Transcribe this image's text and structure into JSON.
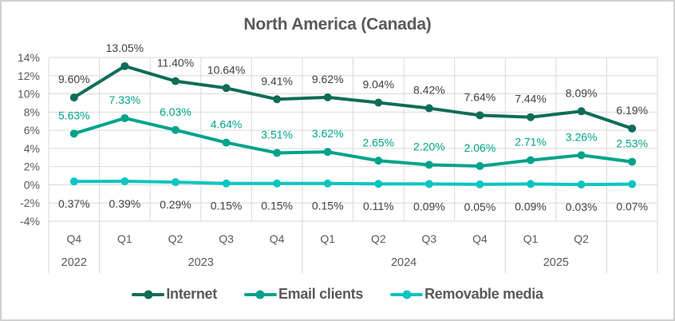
{
  "chart_data": {
    "type": "line",
    "title": "North America (Canada)",
    "grid": true,
    "legend_position": "bottom",
    "y_axis": {
      "min": -4,
      "max": 14,
      "step": 2,
      "ticks": [
        "14%",
        "12%",
        "10%",
        "8%",
        "6%",
        "4%",
        "2%",
        "0%",
        "-2%",
        "-4%"
      ],
      "tick_color": "#595959"
    },
    "quarters": [
      "Q4",
      "Q1",
      "Q2",
      "Q3",
      "Q4",
      "Q1",
      "Q2",
      "Q3",
      "Q4",
      "Q1",
      "Q2",
      ""
    ],
    "year_groups": [
      {
        "label": "2022",
        "span": 1
      },
      {
        "label": "2023",
        "span": 4
      },
      {
        "label": "2024",
        "span": 4
      },
      {
        "label": "2025",
        "span": 2
      },
      {
        "label": "",
        "span": 1
      }
    ],
    "series": [
      {
        "name": "Internet",
        "color": "#106c5a",
        "label_color": "#404040",
        "label_side": "above",
        "values": [
          9.6,
          13.05,
          11.4,
          10.64,
          9.41,
          9.62,
          9.04,
          8.42,
          7.64,
          7.44,
          8.09,
          6.19
        ],
        "labels": [
          "9.60%",
          "13.05%",
          "11.40%",
          "10.64%",
          "9.41%",
          "9.62%",
          "9.04%",
          "8.42%",
          "7.64%",
          "7.44%",
          "8.09%",
          "6.19%"
        ]
      },
      {
        "name": "Email clients",
        "color": "#00a38b",
        "label_color": "#00a38b",
        "label_side": "above",
        "values": [
          5.63,
          7.33,
          6.03,
          4.64,
          3.51,
          3.62,
          2.65,
          2.2,
          2.06,
          2.71,
          3.26,
          2.53
        ],
        "labels": [
          "5.63%",
          "7.33%",
          "6.03%",
          "4.64%",
          "3.51%",
          "3.62%",
          "2.65%",
          "2.20%",
          "2.06%",
          "2.71%",
          "3.26%",
          "2.53%"
        ]
      },
      {
        "name": "Removable media",
        "color": "#0cc5c1",
        "label_color": "#404040",
        "label_side": "below",
        "values": [
          0.37,
          0.39,
          0.29,
          0.15,
          0.15,
          0.15,
          0.11,
          0.09,
          0.05,
          0.09,
          0.03,
          0.07
        ],
        "labels": [
          "0.37%",
          "0.39%",
          "0.29%",
          "0.15%",
          "0.15%",
          "0.15%",
          "0.11%",
          "0.09%",
          "0.05%",
          "0.09%",
          "0.03%",
          "0.07%"
        ]
      }
    ]
  }
}
